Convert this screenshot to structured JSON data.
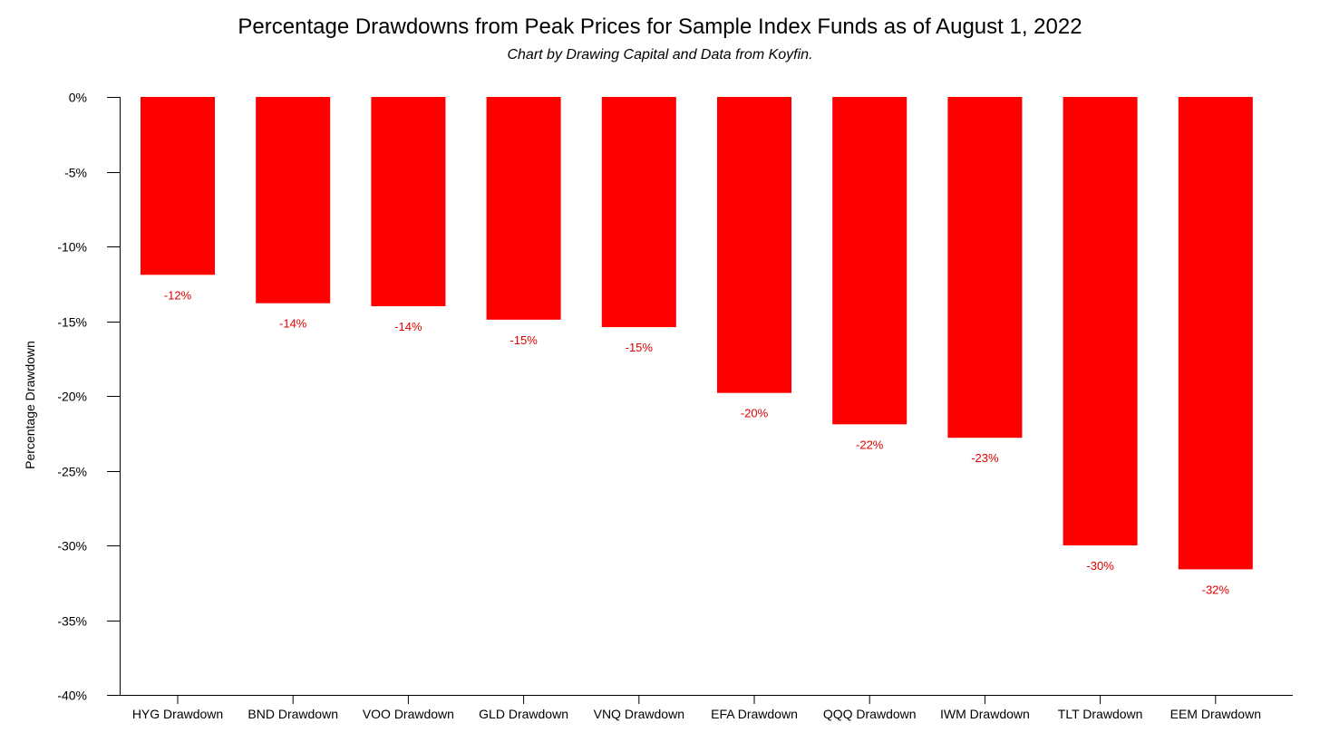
{
  "chart_data": {
    "type": "bar",
    "title": "Percentage Drawdowns from Peak Prices for Sample Index Funds as of August 1, 2022",
    "subtitle": "Chart by Drawing Capital and Data from Koyfin.",
    "xlabel": "",
    "ylabel": "Percentage Drawdown",
    "ylim": [
      -40,
      0
    ],
    "yticks": [
      0,
      -5,
      -10,
      -15,
      -20,
      -25,
      -30,
      -35,
      -40
    ],
    "ytick_labels": [
      "0%",
      "-5%",
      "-10%",
      "-15%",
      "-20%",
      "-25%",
      "-30%",
      "-35%",
      "-40%"
    ],
    "categories": [
      "HYG Drawdown",
      "BND Drawdown",
      "VOO Drawdown",
      "GLD Drawdown",
      "VNQ Drawdown",
      "EFA Drawdown",
      "QQQ Drawdown",
      "IWM Drawdown",
      "TLT Drawdown",
      "EEM Drawdown"
    ],
    "values": [
      -11.9,
      -13.8,
      -14.0,
      -14.9,
      -15.4,
      -19.8,
      -21.9,
      -22.8,
      -30.0,
      -31.6
    ],
    "data_labels": [
      "-12%",
      "-14%",
      "-14%",
      "-15%",
      "-15%",
      "-20%",
      "-22%",
      "-23%",
      "-30%",
      "-32%"
    ],
    "grid": false,
    "legend": "none",
    "colors": {
      "bar": "#ff0000",
      "data_label": "#e00000",
      "axis": "#000000"
    }
  }
}
